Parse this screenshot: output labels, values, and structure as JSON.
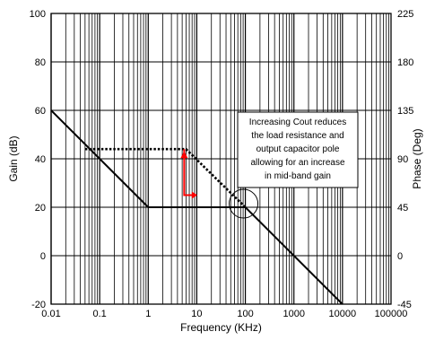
{
  "chart_data": {
    "type": "line",
    "x_scale": "log",
    "xlim": [
      0.01,
      100000
    ],
    "ylim": [
      -20,
      100
    ],
    "y2lim": [
      -45,
      225
    ],
    "grid": true,
    "xlabel": "Frequency (KHz)",
    "ylabel": "Gain (dB)",
    "y2label": "Phase (Deg)",
    "x_ticks": [
      0.01,
      0.1,
      1,
      10,
      100,
      1000,
      10000,
      100000
    ],
    "x_tick_labels": [
      "0.01",
      "0.1",
      "1",
      "10",
      "100",
      "1000",
      "10000",
      "100000"
    ],
    "y_ticks": [
      -20,
      0,
      20,
      40,
      60,
      80,
      100
    ],
    "y_tick_labels": [
      "-20",
      "0",
      "20",
      "40",
      "60",
      "80",
      "100"
    ],
    "y2_ticks": [
      -45,
      0,
      45,
      90,
      135,
      180,
      225
    ],
    "y2_tick_labels": [
      "-45",
      "0",
      "45",
      "90",
      "135",
      "180",
      "225"
    ],
    "series": [
      {
        "style": "solid",
        "color": "#000000",
        "x": [
          0.01,
          1,
          100,
          10000
        ],
        "y": [
          60,
          20,
          20,
          -20
        ]
      },
      {
        "style": "dotted",
        "color": "#000000",
        "x": [
          0.05,
          6,
          100
        ],
        "y": [
          44,
          44,
          20
        ]
      },
      {
        "style": "solid",
        "color": "#ff0000",
        "x": [
          5.5,
          5.5,
          9
        ],
        "y": [
          44,
          25,
          25
        ]
      }
    ],
    "annotation": {
      "lines": [
        "Increasing Cout reduces",
        "the  load resistance and",
        "output capacitor pole",
        "allowing for an increase",
        "in mid-band gain"
      ]
    },
    "highlight": {
      "x": 100,
      "y": 20
    }
  }
}
